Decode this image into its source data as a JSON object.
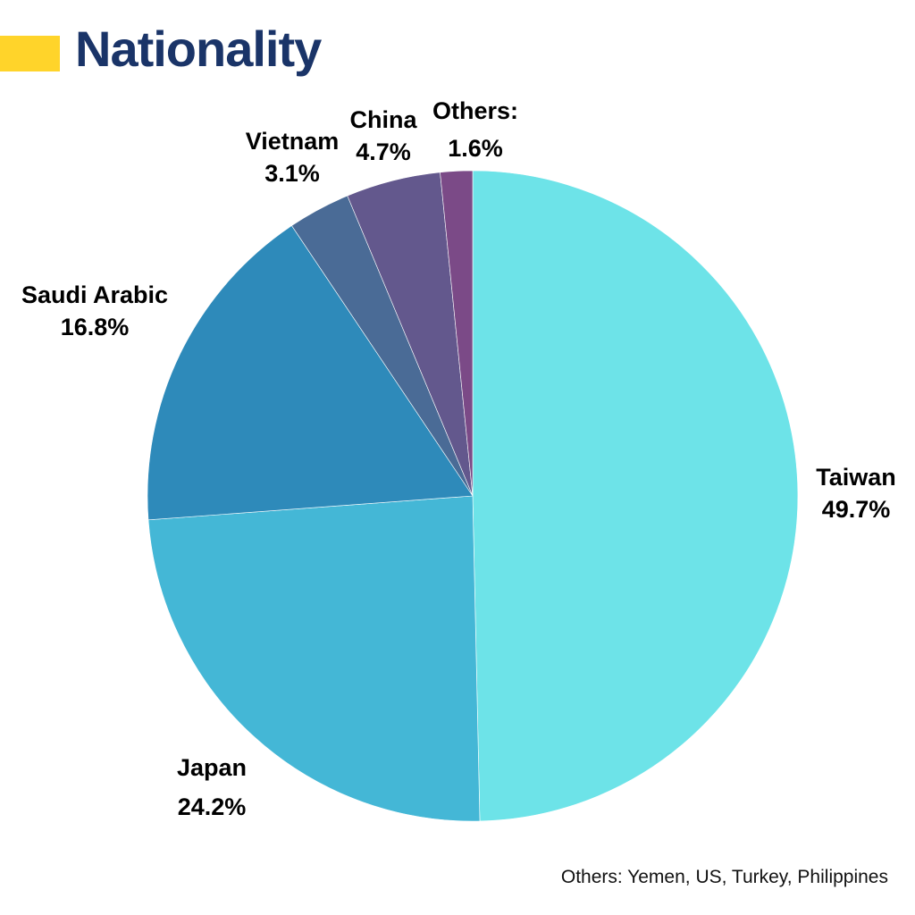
{
  "title": "Nationality",
  "colors": {
    "title_text": "#1a3468",
    "title_accent": "#ffd42a"
  },
  "chart_data": {
    "type": "pie",
    "title": "Nationality",
    "start_angle_deg": 0,
    "direction": "clockwise",
    "slices": [
      {
        "name": "Taiwan",
        "value": 49.7,
        "value_label": "49.7%",
        "color": "#6de3e8"
      },
      {
        "name": "Japan",
        "value": 24.2,
        "value_label": "24.2%",
        "color": "#44b7d6"
      },
      {
        "name": "Saudi Arabic",
        "value": 16.8,
        "value_label": "16.8%",
        "color": "#2e8aba"
      },
      {
        "name": "Vietnam",
        "value": 3.1,
        "value_label": "3.1%",
        "color": "#4a6b96"
      },
      {
        "name": "China",
        "value": 4.7,
        "value_label": "4.7%",
        "color": "#63588d"
      },
      {
        "name": "Others:",
        "value": 1.6,
        "value_label": "1.6%",
        "color": "#7b4a87"
      }
    ]
  },
  "footnote": "Others: Yemen, US, Turkey, Philippines"
}
